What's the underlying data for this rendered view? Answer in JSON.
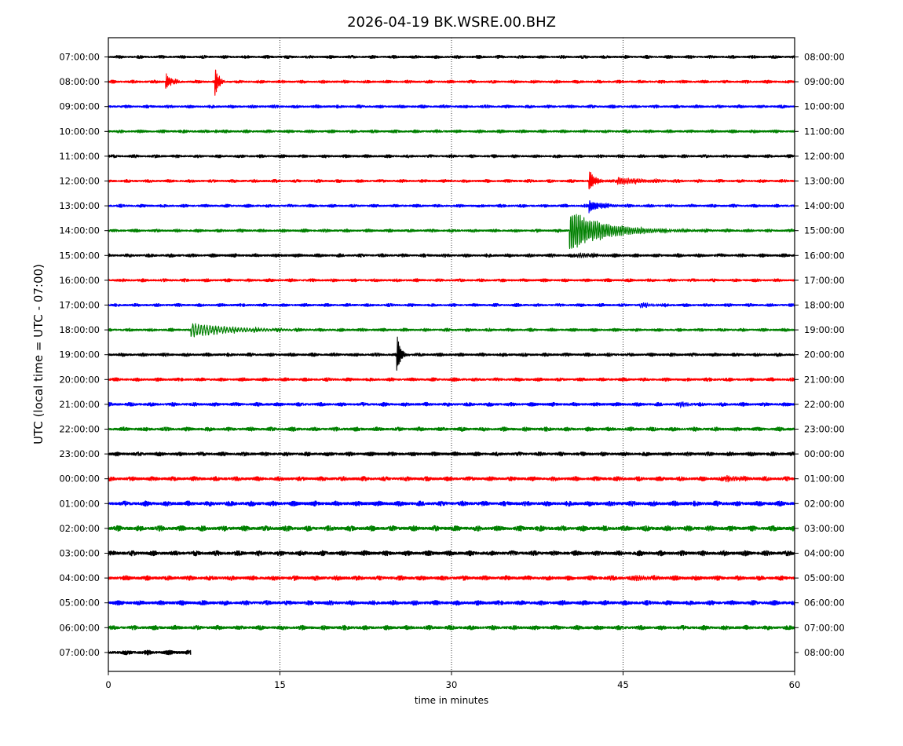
{
  "chart_data": {
    "type": "line",
    "title": "2026-04-19 BK.WSRE.00.BHZ",
    "xlabel": "time in minutes",
    "ylabel": "UTC (local time = UTC - 07:00)",
    "xlim": [
      0,
      60
    ],
    "x_ticks": [
      0,
      15,
      30,
      45,
      60
    ],
    "x_tick_labels": [
      "0",
      "15",
      "30",
      "45",
      "60"
    ],
    "grid_x": [
      15,
      30,
      45
    ],
    "trace_colors": [
      "#000000",
      "#ff0000",
      "#0000ff",
      "#008000"
    ],
    "row_labels_left": [
      "07:00:00",
      "08:00:00",
      "09:00:00",
      "10:00:00",
      "11:00:00",
      "12:00:00",
      "13:00:00",
      "14:00:00",
      "15:00:00",
      "16:00:00",
      "17:00:00",
      "18:00:00",
      "19:00:00",
      "20:00:00",
      "21:00:00",
      "22:00:00",
      "23:00:00",
      "00:00:00",
      "01:00:00",
      "02:00:00",
      "03:00:00",
      "04:00:00",
      "05:00:00",
      "06:00:00",
      "07:00:00"
    ],
    "row_labels_right": [
      "08:00:00",
      "09:00:00",
      "10:00:00",
      "11:00:00",
      "12:00:00",
      "13:00:00",
      "14:00:00",
      "15:00:00",
      "16:00:00",
      "17:00:00",
      "18:00:00",
      "19:00:00",
      "20:00:00",
      "21:00:00",
      "22:00:00",
      "23:00:00",
      "00:00:00",
      "01:00:00",
      "02:00:00",
      "03:00:00",
      "04:00:00",
      "05:00:00",
      "06:00:00",
      "07:00:00",
      "08:00:00"
    ],
    "rows": [
      {
        "noise": 1.0,
        "end": 60,
        "events": []
      },
      {
        "noise": 1.0,
        "end": 60,
        "events": [
          {
            "t": 5.0,
            "amp": 12,
            "decay": 0.45,
            "freq": 9
          },
          {
            "t": 9.3,
            "amp": 22,
            "decay": 0.3,
            "freq": 9
          }
        ]
      },
      {
        "noise": 1.0,
        "end": 60,
        "events": []
      },
      {
        "noise": 1.0,
        "end": 60,
        "events": [
          {
            "t": 9.3,
            "amp": 2.5,
            "decay": 0.3,
            "freq": 9
          }
        ]
      },
      {
        "noise": 1.0,
        "end": 60,
        "events": []
      },
      {
        "noise": 1.0,
        "end": 60,
        "events": [
          {
            "t": 42.0,
            "amp": 16,
            "decay": 0.5,
            "freq": 9
          },
          {
            "t": 44.5,
            "amp": 5,
            "decay": 2.5,
            "freq": 7
          }
        ]
      },
      {
        "noise": 1.0,
        "end": 60,
        "events": [
          {
            "t": 42.0,
            "amp": 8,
            "decay": 1.0,
            "freq": 9
          }
        ]
      },
      {
        "noise": 1.0,
        "end": 60,
        "events": [
          {
            "t": 40.3,
            "amp": 26,
            "decay": 3.0,
            "freq": 6
          }
        ]
      },
      {
        "noise": 1.1,
        "end": 60,
        "events": [
          {
            "t": 41.0,
            "amp": 3,
            "decay": 2.0,
            "freq": 6
          }
        ]
      },
      {
        "noise": 1.0,
        "end": 60,
        "events": []
      },
      {
        "noise": 1.0,
        "end": 60,
        "events": [
          {
            "t": 46.5,
            "amp": 3,
            "decay": 1.2,
            "freq": 6
          }
        ]
      },
      {
        "noise": 1.0,
        "end": 60,
        "events": [
          {
            "t": 7.2,
            "amp": 9,
            "decay": 3.5,
            "freq": 4
          }
        ]
      },
      {
        "noise": 1.1,
        "end": 60,
        "events": [
          {
            "t": 25.2,
            "amp": 28,
            "decay": 0.3,
            "freq": 10
          }
        ]
      },
      {
        "noise": 1.1,
        "end": 60,
        "events": []
      },
      {
        "noise": 1.2,
        "end": 60,
        "events": [
          {
            "t": 50.0,
            "amp": 3,
            "decay": 1.0,
            "freq": 7
          }
        ]
      },
      {
        "noise": 1.3,
        "end": 60,
        "events": []
      },
      {
        "noise": 1.3,
        "end": 60,
        "events": []
      },
      {
        "noise": 1.4,
        "end": 60,
        "events": [
          {
            "t": 54.0,
            "amp": 4,
            "decay": 1.2,
            "freq": 7
          }
        ]
      },
      {
        "noise": 1.6,
        "end": 60,
        "events": []
      },
      {
        "noise": 1.7,
        "end": 60,
        "events": []
      },
      {
        "noise": 1.6,
        "end": 60,
        "events": []
      },
      {
        "noise": 1.5,
        "end": 60,
        "events": [
          {
            "t": 46.0,
            "amp": 3,
            "decay": 1.5,
            "freq": 6
          }
        ]
      },
      {
        "noise": 1.5,
        "end": 60,
        "events": []
      },
      {
        "noise": 1.4,
        "end": 60,
        "events": []
      },
      {
        "noise": 1.5,
        "end": 7.2,
        "events": []
      }
    ]
  }
}
